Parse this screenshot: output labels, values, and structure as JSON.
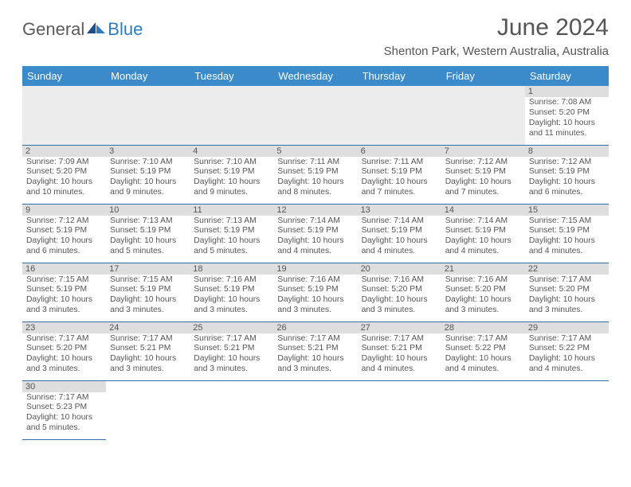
{
  "logo": {
    "word1": "General",
    "word2": "Blue"
  },
  "title": "June 2024",
  "location": "Shenton Park, Western Australia, Australia",
  "colors": {
    "header_bg": "#3b8bca",
    "header_text": "#ffffff",
    "row_divider": "#2f6fa8",
    "daynum_bg": "#dedede",
    "empty_bg": "#ececec",
    "text": "#555555",
    "logo_blue": "#2e7cc0"
  },
  "typography": {
    "title_fontsize": 30,
    "location_fontsize": 15,
    "header_fontsize": 13,
    "daynum_fontsize": 11,
    "info_fontsize": 10.3
  },
  "weekdays": [
    "Sunday",
    "Monday",
    "Tuesday",
    "Wednesday",
    "Thursday",
    "Friday",
    "Saturday"
  ],
  "weeks": [
    [
      null,
      null,
      null,
      null,
      null,
      null,
      {
        "n": "1",
        "sr": "7:08 AM",
        "ss": "5:20 PM",
        "dl": "10 hours and 11 minutes."
      }
    ],
    [
      {
        "n": "2",
        "sr": "7:09 AM",
        "ss": "5:20 PM",
        "dl": "10 hours and 10 minutes."
      },
      {
        "n": "3",
        "sr": "7:10 AM",
        "ss": "5:19 PM",
        "dl": "10 hours and 9 minutes."
      },
      {
        "n": "4",
        "sr": "7:10 AM",
        "ss": "5:19 PM",
        "dl": "10 hours and 9 minutes."
      },
      {
        "n": "5",
        "sr": "7:11 AM",
        "ss": "5:19 PM",
        "dl": "10 hours and 8 minutes."
      },
      {
        "n": "6",
        "sr": "7:11 AM",
        "ss": "5:19 PM",
        "dl": "10 hours and 7 minutes."
      },
      {
        "n": "7",
        "sr": "7:12 AM",
        "ss": "5:19 PM",
        "dl": "10 hours and 7 minutes."
      },
      {
        "n": "8",
        "sr": "7:12 AM",
        "ss": "5:19 PM",
        "dl": "10 hours and 6 minutes."
      }
    ],
    [
      {
        "n": "9",
        "sr": "7:12 AM",
        "ss": "5:19 PM",
        "dl": "10 hours and 6 minutes."
      },
      {
        "n": "10",
        "sr": "7:13 AM",
        "ss": "5:19 PM",
        "dl": "10 hours and 5 minutes."
      },
      {
        "n": "11",
        "sr": "7:13 AM",
        "ss": "5:19 PM",
        "dl": "10 hours and 5 minutes."
      },
      {
        "n": "12",
        "sr": "7:14 AM",
        "ss": "5:19 PM",
        "dl": "10 hours and 4 minutes."
      },
      {
        "n": "13",
        "sr": "7:14 AM",
        "ss": "5:19 PM",
        "dl": "10 hours and 4 minutes."
      },
      {
        "n": "14",
        "sr": "7:14 AM",
        "ss": "5:19 PM",
        "dl": "10 hours and 4 minutes."
      },
      {
        "n": "15",
        "sr": "7:15 AM",
        "ss": "5:19 PM",
        "dl": "10 hours and 4 minutes."
      }
    ],
    [
      {
        "n": "16",
        "sr": "7:15 AM",
        "ss": "5:19 PM",
        "dl": "10 hours and 3 minutes."
      },
      {
        "n": "17",
        "sr": "7:15 AM",
        "ss": "5:19 PM",
        "dl": "10 hours and 3 minutes."
      },
      {
        "n": "18",
        "sr": "7:16 AM",
        "ss": "5:19 PM",
        "dl": "10 hours and 3 minutes."
      },
      {
        "n": "19",
        "sr": "7:16 AM",
        "ss": "5:19 PM",
        "dl": "10 hours and 3 minutes."
      },
      {
        "n": "20",
        "sr": "7:16 AM",
        "ss": "5:20 PM",
        "dl": "10 hours and 3 minutes."
      },
      {
        "n": "21",
        "sr": "7:16 AM",
        "ss": "5:20 PM",
        "dl": "10 hours and 3 minutes."
      },
      {
        "n": "22",
        "sr": "7:17 AM",
        "ss": "5:20 PM",
        "dl": "10 hours and 3 minutes."
      }
    ],
    [
      {
        "n": "23",
        "sr": "7:17 AM",
        "ss": "5:20 PM",
        "dl": "10 hours and 3 minutes."
      },
      {
        "n": "24",
        "sr": "7:17 AM",
        "ss": "5:21 PM",
        "dl": "10 hours and 3 minutes."
      },
      {
        "n": "25",
        "sr": "7:17 AM",
        "ss": "5:21 PM",
        "dl": "10 hours and 3 minutes."
      },
      {
        "n": "26",
        "sr": "7:17 AM",
        "ss": "5:21 PM",
        "dl": "10 hours and 3 minutes."
      },
      {
        "n": "27",
        "sr": "7:17 AM",
        "ss": "5:21 PM",
        "dl": "10 hours and 4 minutes."
      },
      {
        "n": "28",
        "sr": "7:17 AM",
        "ss": "5:22 PM",
        "dl": "10 hours and 4 minutes."
      },
      {
        "n": "29",
        "sr": "7:17 AM",
        "ss": "5:22 PM",
        "dl": "10 hours and 4 minutes."
      }
    ],
    [
      {
        "n": "30",
        "sr": "7:17 AM",
        "ss": "5:23 PM",
        "dl": "10 hours and 5 minutes."
      },
      null,
      null,
      null,
      null,
      null,
      null
    ]
  ],
  "labels": {
    "sunrise": "Sunrise: ",
    "sunset": "Sunset: ",
    "daylight": "Daylight: "
  }
}
